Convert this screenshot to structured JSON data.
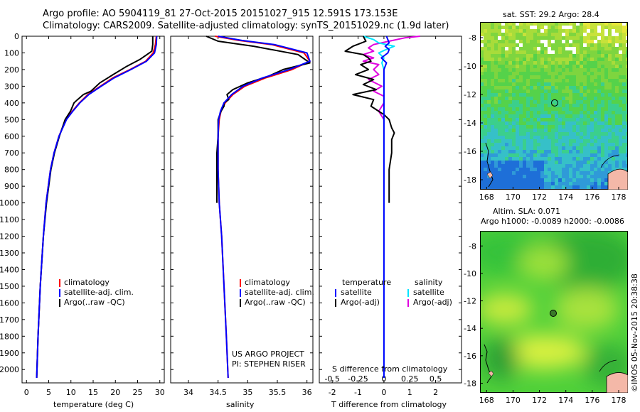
{
  "header": {
    "line1": "Argo profile: AO 5904119_81 27-Oct-2015 20151027_915 12.591S 173.153E",
    "line2": "Climatology: CARS2009. Satellite-adjusted climatology: synTS_20151029.nc (1.9d later)"
  },
  "colors": {
    "climatology": "#ff0000",
    "satellite": "#0000ff",
    "argo": "#000000",
    "salinity_satellite": "#00e5ff",
    "salinity_argo": "#e000e0"
  },
  "panels": {
    "temperature": {
      "xlabel": "temperature (deg C)",
      "legend": [
        "climatology",
        "satellite-adj. clim.",
        "Argo(..raw -QC)"
      ]
    },
    "salinity": {
      "xlabel": "salinity",
      "legend": [
        "climatology",
        "satellite-adj. clim.",
        "Argo(..raw -QC)"
      ],
      "credit1": "US ARGO PROJECT",
      "credit2": "PI: STEPHEN RISER"
    },
    "difference": {
      "xlabel": "T difference from climatology",
      "xlabel_top": "S difference from climatology",
      "legend_temp_title": "temperature",
      "legend_sal_title": "salinity",
      "legend_temp": [
        "satellite",
        "Argo(-adj)"
      ],
      "legend_sal": [
        "satellite",
        "Argo(-adj)"
      ]
    }
  },
  "maps": {
    "sst_title": "sat. SST: 29.2  Argo: 28.4",
    "sla_title1": "Altim. SLA: 0.071",
    "sla_title2": "Argo h1000: -0.0089  h2000: -0.0086",
    "copyright": "©IMOS 05-Nov-2015 20:38:38",
    "x_ticks": [
      168,
      170,
      172,
      174,
      176,
      178
    ],
    "y_ticks": [
      -8,
      -10,
      -12,
      -14,
      -16,
      -18
    ],
    "xlim": [
      167.5,
      178.7
    ],
    "ylim": [
      -18.7,
      -6.9
    ],
    "marker": {
      "lon": 173.153,
      "lat": -12.591
    }
  },
  "chart_data": [
    {
      "type": "line",
      "title": "",
      "xlabel": "temperature (deg C)",
      "ylabel": "",
      "xlim": [
        -1,
        31
      ],
      "ylim": [
        2080,
        0
      ],
      "x_ticks": [
        0,
        5,
        10,
        15,
        20,
        25,
        30
      ],
      "y_ticks": [
        0,
        100,
        200,
        300,
        400,
        500,
        600,
        700,
        800,
        900,
        1000,
        1100,
        1200,
        1300,
        1400,
        1500,
        1600,
        1700,
        1800,
        1900,
        2000
      ],
      "series": [
        {
          "name": "climatology",
          "depth": [
            0,
            50,
            100,
            150,
            200,
            250,
            300,
            350,
            400,
            450,
            500,
            600,
            700,
            800,
            1000,
            1200,
            1500,
            1800,
            2050
          ],
          "values": [
            29.2,
            29.0,
            28.5,
            26.8,
            23.3,
            19.4,
            16.6,
            13.8,
            11.9,
            10.3,
            8.9,
            7.3,
            6.2,
            5.4,
            4.4,
            3.8,
            3.1,
            2.6,
            2.3
          ]
        },
        {
          "name": "satellite-adj. clim.",
          "depth": [
            0,
            50,
            100,
            150,
            200,
            250,
            300,
            350,
            400,
            450,
            500,
            600,
            700,
            800,
            1000,
            1200,
            1500,
            1800,
            2050
          ],
          "values": [
            29.3,
            29.2,
            28.8,
            27.0,
            23.5,
            19.7,
            16.8,
            14.0,
            12.0,
            10.4,
            9.0,
            7.3,
            6.2,
            5.4,
            4.4,
            3.8,
            3.1,
            2.6,
            2.3
          ]
        },
        {
          "name": "Argo(..raw -QC)",
          "depth": [
            0,
            50,
            90,
            140,
            180,
            230,
            280,
            330,
            350,
            380,
            400,
            450,
            500,
            600,
            700,
            800,
            1000,
            1200,
            1500,
            1800,
            2050
          ],
          "values": [
            28.4,
            28.4,
            28.2,
            25.5,
            22.6,
            19.5,
            16.5,
            14.5,
            12.8,
            11.5,
            10.7,
            9.9,
            8.7,
            7.4,
            6.3,
            5.5,
            4.5,
            3.8,
            3.1,
            2.6,
            2.3
          ]
        }
      ]
    },
    {
      "type": "line",
      "title": "",
      "xlabel": "salinity",
      "ylabel": "",
      "xlim": [
        33.7,
        36.1
      ],
      "ylim": [
        2080,
        0
      ],
      "x_ticks": [
        34,
        34.5,
        35,
        35.5,
        36
      ],
      "series": [
        {
          "name": "climatology",
          "depth": [
            0,
            25,
            50,
            100,
            150,
            200,
            250,
            300,
            350,
            400,
            450,
            500,
            600,
            700,
            800,
            1000,
            1200,
            1500,
            1800,
            2050
          ],
          "values": [
            34.45,
            34.85,
            35.4,
            35.95,
            36.05,
            35.75,
            35.3,
            34.95,
            34.75,
            34.62,
            34.55,
            34.52,
            34.5,
            34.5,
            34.5,
            34.52,
            34.56,
            34.6,
            34.64,
            34.67
          ]
        },
        {
          "name": "satellite-adj. clim.",
          "depth": [
            0,
            25,
            50,
            100,
            150,
            200,
            250,
            300,
            350,
            400,
            450,
            500,
            600,
            700,
            800,
            1000,
            1200,
            1500,
            1800,
            2050
          ],
          "values": [
            34.5,
            34.9,
            35.45,
            36.0,
            36.05,
            35.7,
            35.25,
            34.92,
            34.73,
            34.6,
            34.54,
            34.51,
            34.5,
            34.5,
            34.5,
            34.52,
            34.56,
            34.6,
            34.64,
            34.67
          ]
        },
        {
          "name": "Argo(..raw -QC)",
          "depth": [
            0,
            30,
            60,
            110,
            160,
            200,
            240,
            280,
            320,
            350,
            380,
            400,
            420,
            450,
            500,
            600,
            700,
            800,
            900,
            1000
          ],
          "values": [
            34.3,
            34.5,
            35.1,
            35.85,
            36.05,
            35.6,
            35.35,
            35.0,
            34.75,
            34.65,
            34.68,
            34.6,
            34.6,
            34.55,
            34.5,
            34.5,
            34.48,
            34.48,
            34.48,
            34.48
          ]
        }
      ]
    },
    {
      "type": "line",
      "title": "",
      "xlabel": "T difference from climatology",
      "x2label": "S difference from climatology",
      "ylabel": "",
      "xlim": [
        -2.5,
        3.0
      ],
      "x2lim": [
        -0.625,
        0.75
      ],
      "ylim": [
        2080,
        0
      ],
      "x_ticks": [
        -2,
        -1,
        0,
        1,
        2
      ],
      "x2_ticks": [
        -0.5,
        -0.25,
        0,
        0.25,
        0.5
      ],
      "series": [
        {
          "name": "temperature satellite",
          "depth": [
            0,
            20,
            40,
            60,
            80,
            100,
            130,
            160,
            200,
            250,
            300,
            400,
            500,
            600,
            800,
            1000,
            1500,
            2050
          ],
          "values": [
            0.1,
            0.15,
            0.2,
            0.05,
            0.2,
            0.15,
            -0.1,
            0.1,
            0.0,
            0.0,
            0.0,
            0.0,
            0.0,
            0.0,
            0.0,
            0.0,
            0.0,
            0.0
          ]
        },
        {
          "name": "temperature Argo(-adj)",
          "depth": [
            0,
            30,
            60,
            90,
            110,
            130,
            150,
            170,
            200,
            230,
            260,
            290,
            320,
            350,
            380,
            420,
            450,
            470,
            500,
            550,
            580,
            620,
            700,
            800,
            900,
            1000
          ],
          "values": [
            -0.8,
            -0.7,
            -1.2,
            -1.5,
            -0.8,
            -0.6,
            -0.5,
            -0.9,
            -0.6,
            -1.1,
            -0.4,
            -0.8,
            -0.3,
            -1.2,
            -0.4,
            -0.5,
            -0.2,
            0.0,
            0.2,
            0.3,
            0.4,
            0.3,
            0.3,
            0.2,
            0.2,
            0.2
          ]
        },
        {
          "name": "salinity satellite",
          "depth": [
            0,
            20,
            40,
            60,
            80,
            100,
            130,
            160,
            200,
            300,
            400,
            500,
            600,
            800,
            1000,
            1500,
            2050
          ],
          "values": [
            -0.2,
            -0.1,
            -0.05,
            0.1,
            0.02,
            -0.05,
            0.0,
            -0.02,
            0.0,
            0.0,
            0.0,
            0.0,
            0.0,
            0.0,
            0.0,
            0.0,
            0.0
          ]
        },
        {
          "name": "salinity Argo(-adj)",
          "depth": [
            0,
            10,
            30,
            50,
            70,
            90,
            110,
            130,
            150,
            170,
            200,
            230,
            260,
            300,
            330,
            360,
            400,
            450,
            500
          ],
          "values": [
            0.35,
            0.2,
            0.05,
            -0.1,
            -0.15,
            -0.1,
            -0.2,
            -0.1,
            -0.2,
            -0.05,
            -0.1,
            -0.05,
            -0.15,
            -0.02,
            -0.1,
            0.0,
            0.0,
            -0.05,
            0.0
          ]
        }
      ]
    }
  ]
}
